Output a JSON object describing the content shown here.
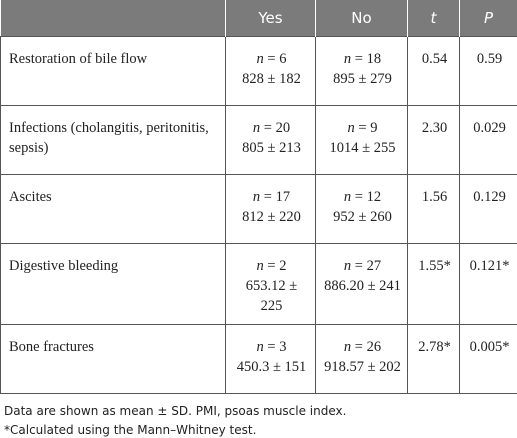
{
  "n_symbol": "n",
  "table": {
    "headers": [
      "Yes",
      "No",
      "t",
      "P"
    ],
    "rows": [
      {
        "label": "Restoration of bile flow",
        "yes_n": "= 6",
        "yes_stats": "828 ± 182",
        "no_n": "= 18",
        "no_stats": "895 ± 279",
        "t": "0.54",
        "p": "0.59"
      },
      {
        "label": "Infections (cholangitis, peritonitis, sepsis)",
        "yes_n": "= 20",
        "yes_stats": "805 ± 213",
        "no_n": "= 9",
        "no_stats": "1014 ± 255",
        "t": "2.30",
        "p": "0.029"
      },
      {
        "label": "Ascites",
        "yes_n": "= 17",
        "yes_stats": "812 ± 220",
        "no_n": "= 12",
        "no_stats": "952 ± 260",
        "t": "1.56",
        "p": "0.129"
      },
      {
        "label": "Digestive bleeding",
        "yes_n": "= 2",
        "yes_stats": "653.12 ± 225",
        "no_n": "= 27",
        "no_stats": "886.20 ± 241",
        "t": "1.55*",
        "p": "0.121*"
      },
      {
        "label": "Bone fractures",
        "yes_n": "= 3",
        "yes_stats": "450.3 ± 151",
        "no_n": "= 26",
        "no_stats": "918.57 ± 202",
        "t": "2.78*",
        "p": "0.005*"
      }
    ]
  },
  "footnotes": [
    "Data are shown as mean ± SD. PMI, psoas muscle index.",
    "*Calculated using the Mann–Whitney test."
  ]
}
